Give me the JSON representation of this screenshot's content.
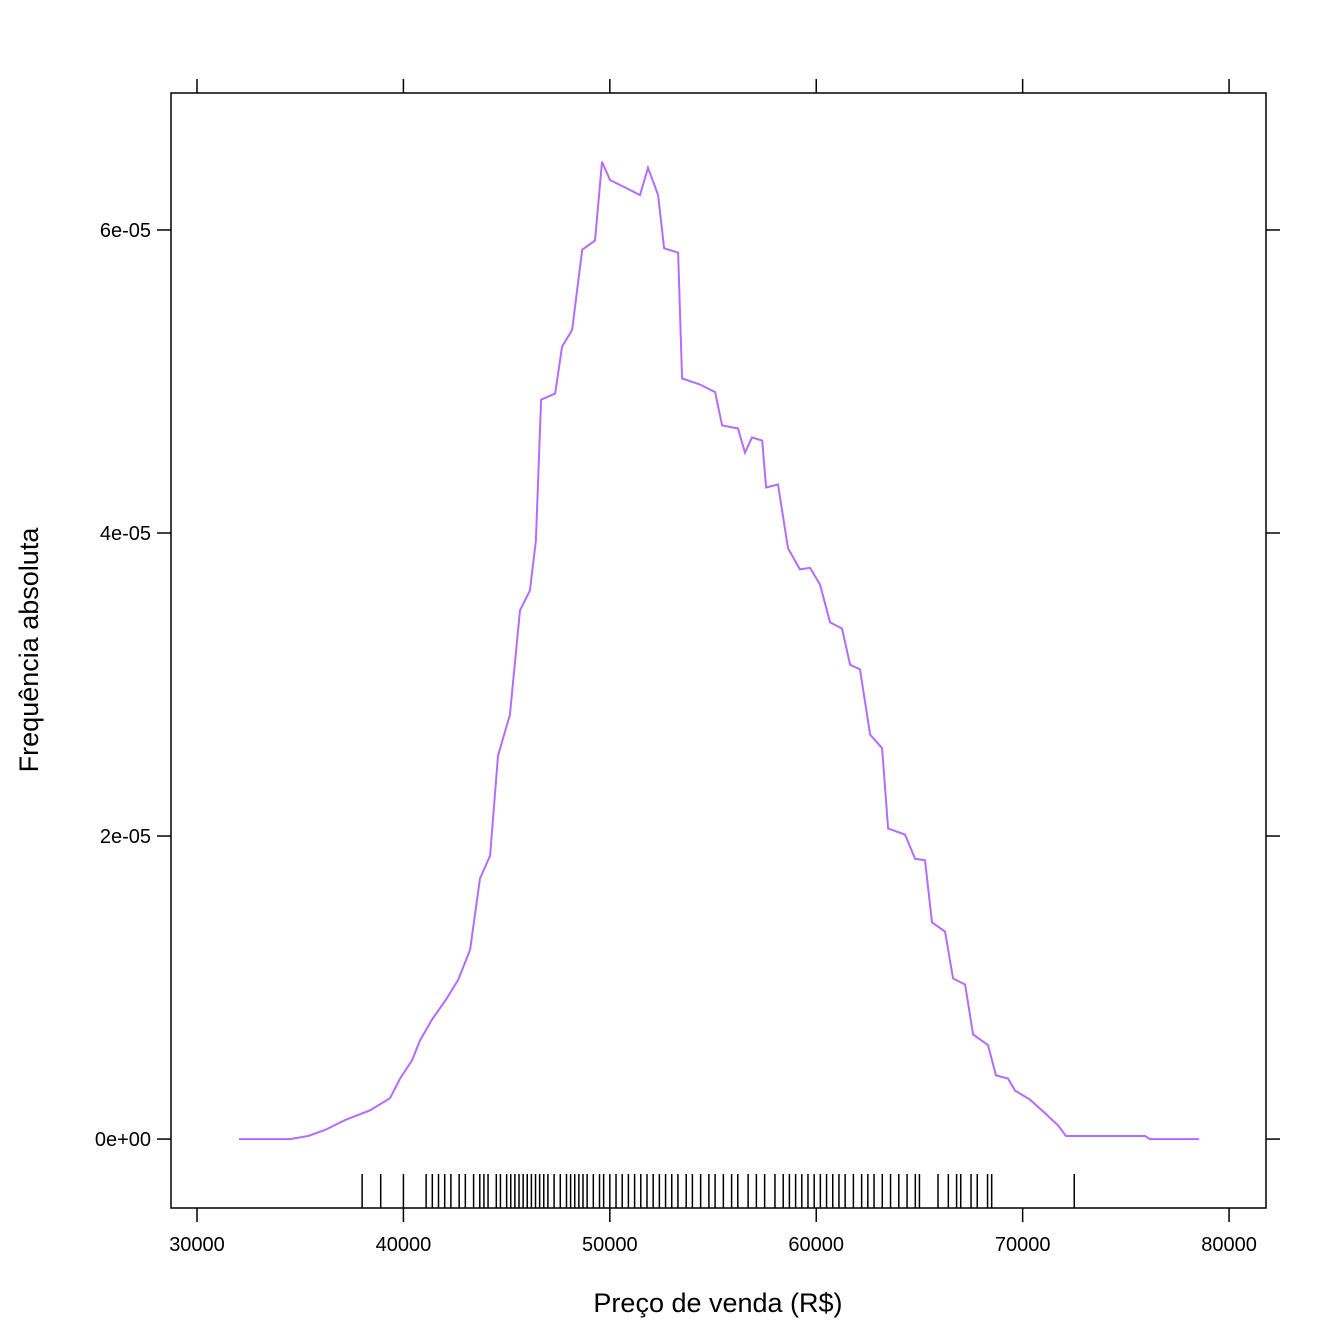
{
  "chart_data": {
    "type": "density",
    "xlabel": "Preço de venda (R$)",
    "ylabel": "Frequência absoluta",
    "xlim": [
      28740,
      81790
    ],
    "ylim": [
      -4.55e-06,
      6.904e-05
    ],
    "xticks": [
      30000,
      40000,
      50000,
      60000,
      70000,
      80000
    ],
    "yticks": [
      {
        "value": 0,
        "label": "0e+00"
      },
      {
        "value": 2e-05,
        "label": "2e-05"
      },
      {
        "value": 4e-05,
        "label": "4e-05"
      },
      {
        "value": 6e-05,
        "label": "6e-05"
      }
    ],
    "color": "#b36cff",
    "x": [
      32035,
      34500,
      35380,
      36200,
      37170,
      38380,
      39350,
      39840,
      40420,
      40800,
      41390,
      42060,
      42650,
      43230,
      43710,
      44200,
      44580,
      45160,
      45650,
      46130,
      46420,
      46670,
      47350,
      47690,
      48170,
      48660,
      49280,
      49620,
      50010,
      50740,
      51460,
      51850,
      52340,
      52630,
      53310,
      53500,
      54370,
      55100,
      55440,
      56210,
      56550,
      56890,
      57380,
      57570,
      58150,
      58630,
      59210,
      59700,
      60180,
      60670,
      61250,
      61640,
      62120,
      62610,
      63190,
      63480,
      64300,
      64790,
      65270,
      65610,
      66240,
      66630,
      67210,
      67600,
      68320,
      68710,
      69290,
      69630,
      70360,
      71090,
      71720,
      72100,
      73750,
      75930,
      76170,
      78550
    ],
    "values": [
      0,
      0,
      2e-07,
      6e-07,
      1.25e-06,
      1.9e-06,
      2.7e-06,
      4e-06,
      5.2e-06,
      6.5e-06,
      7.9e-06,
      9.2e-06,
      1.05e-05,
      1.25e-05,
      1.72e-05,
      1.87e-05,
      2.53e-05,
      2.8e-05,
      3.49e-05,
      3.62e-05,
      3.95e-05,
      4.88e-05,
      4.92e-05,
      5.23e-05,
      5.34e-05,
      5.87e-05,
      5.93e-05,
      6.45e-05,
      6.33e-05,
      6.28e-05,
      6.23e-05,
      6.41e-05,
      6.23e-05,
      5.88e-05,
      5.85e-05,
      5.02e-05,
      4.98e-05,
      4.93e-05,
      4.71e-05,
      4.69e-05,
      4.53e-05,
      4.63e-05,
      4.61e-05,
      4.3e-05,
      4.32e-05,
      3.9e-05,
      3.76e-05,
      3.77e-05,
      3.66e-05,
      3.41e-05,
      3.37e-05,
      3.13e-05,
      3.1e-05,
      2.67e-05,
      2.58e-05,
      2.05e-05,
      2.01e-05,
      1.85e-05,
      1.84e-05,
      1.43e-05,
      1.37e-05,
      1.06e-05,
      1.02e-05,
      6.9e-06,
      6.2e-06,
      4.2e-06,
      4e-06,
      3.2e-06,
      2.6e-06,
      1.7e-06,
      9e-07,
      2e-07,
      2e-07,
      2e-07,
      0,
      0
    ],
    "rug": [
      38000,
      38900,
      40000,
      41100,
      41400,
      41700,
      42000,
      42300,
      42700,
      43000,
      43400,
      43700,
      43900,
      44100,
      44500,
      44700,
      45000,
      45200,
      45400,
      45600,
      45800,
      46000,
      46200,
      46400,
      46600,
      46800,
      47000,
      47300,
      47600,
      47900,
      48100,
      48300,
      48500,
      48700,
      48900,
      49200,
      49500,
      49700,
      50000,
      50300,
      50600,
      50900,
      51200,
      51500,
      51800,
      52100,
      52400,
      52700,
      53000,
      53300,
      53700,
      54000,
      54400,
      54800,
      55100,
      55500,
      55900,
      56200,
      56700,
      57100,
      57500,
      58000,
      58400,
      58700,
      59000,
      59300,
      59600,
      59900,
      60200,
      60500,
      60800,
      61100,
      61400,
      61800,
      62200,
      62500,
      62800,
      63200,
      63600,
      64000,
      64400,
      64800,
      65000,
      65900,
      66400,
      66800,
      67000,
      67500,
      67800,
      68300,
      68500,
      72500
    ]
  }
}
